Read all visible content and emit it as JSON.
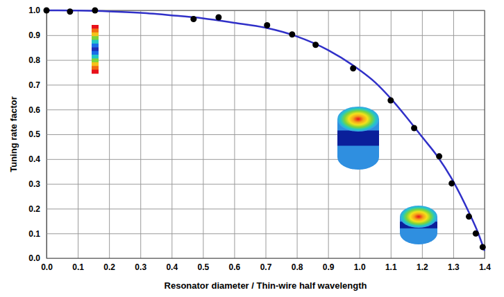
{
  "chart_data": {
    "type": "scatter",
    "x_label": "Resonator diameter / Thin-wire half wavelength",
    "y_label": "Tuning rate factor",
    "xlim": [
      0,
      1.4
    ],
    "ylim": [
      0,
      1
    ],
    "xticks": [
      {
        "value": 0,
        "label": "0.0"
      },
      0.1,
      0.2,
      0.3,
      0.4,
      0.5,
      0.6,
      0.7,
      0.8,
      0.9,
      {
        "value": 1,
        "label": "1.0"
      },
      1.1,
      1.2,
      1.3,
      1.4
    ],
    "yticks": [
      {
        "value": 0,
        "label": "0.0"
      },
      0.1,
      0.2,
      0.3,
      0.4,
      0.5,
      0.6,
      0.7,
      0.8,
      0.9,
      {
        "value": 1,
        "label": "1.0"
      }
    ],
    "grid": true,
    "series": [
      {
        "type": "line",
        "color": "#3030c8",
        "line_style": "solid",
        "x": [
          0,
          0.1,
          0.2,
          0.3,
          0.4,
          0.5,
          0.6,
          0.7,
          0.8,
          0.9,
          1.0,
          1.05,
          1.1,
          1.15,
          1.2,
          1.25,
          1.3,
          1.35,
          1.38,
          1.4
        ],
        "values": [
          1.0,
          0.999,
          0.996,
          0.99,
          0.98,
          0.968,
          0.95,
          0.93,
          0.895,
          0.84,
          0.76,
          0.71,
          0.645,
          0.57,
          0.49,
          0.41,
          0.31,
          0.185,
          0.1,
          0.03
        ]
      },
      {
        "type": "scatter",
        "color": "#000000",
        "marker": "circle",
        "x": [
          0,
          0.075,
          0.155,
          0.47,
          0.55,
          0.705,
          0.785,
          0.86,
          0.98,
          1.1,
          1.175,
          1.255,
          1.295,
          1.35,
          1.372,
          1.394
        ],
        "values": [
          1.0,
          0.995,
          1.0,
          0.965,
          0.972,
          0.94,
          0.903,
          0.861,
          0.766,
          0.637,
          0.525,
          0.411,
          0.302,
          0.168,
          0.1,
          0.045
        ]
      }
    ]
  }
}
